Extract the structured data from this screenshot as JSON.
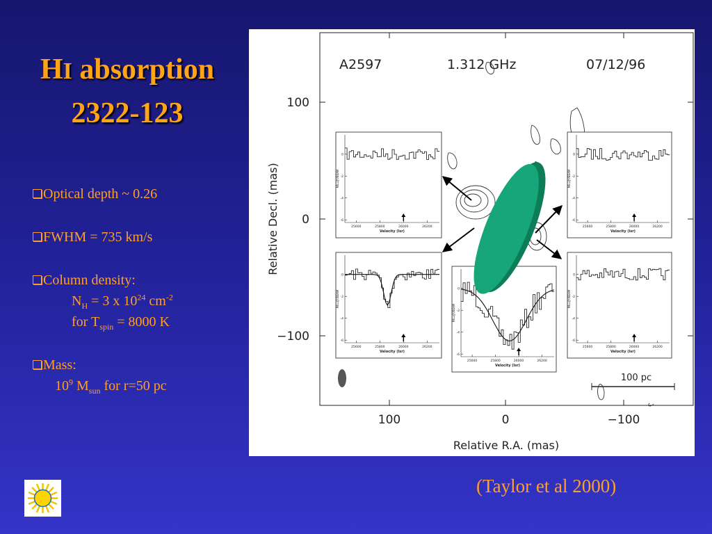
{
  "title": {
    "h": "H",
    "i": "I",
    "rest": " absorption",
    "line2": "2322-123"
  },
  "bullets": {
    "optical_depth": "Optical depth ~ 0.26",
    "fwhm": "FWHM = 735 km/s",
    "column_density": {
      "label": "Column density:",
      "n": "N",
      "n_sub": "H",
      "eq": " = 3 x 10",
      "exp": "24",
      "unit": " cm",
      "unit_exp": "-2",
      "for": "for T",
      "for_sub": "spin",
      "for_rest": " = 8000 K"
    },
    "mass": {
      "label": "Mass:",
      "base": "10",
      "exp": "9",
      "m": " M",
      "m_sub": "sun",
      "rest": " for r=50 pc"
    }
  },
  "figure": {
    "header": [
      "A2597",
      "1.312 GHz",
      "07/12/96"
    ],
    "yticks": [
      "100",
      "0",
      "−100"
    ],
    "xticks": [
      "100",
      "0",
      "−100"
    ],
    "ylabel": "Relative Decl. (mas)",
    "xlabel": "Relative R.A. (mas)",
    "scale": "100 pc",
    "inset": {
      "ylabel": "MILLIJY/BEAM",
      "xlabel": "Velocity (lsr)",
      "xticks": [
        "25600",
        "25800",
        "26000",
        "26200"
      ],
      "yticks": [
        "0",
        "-2",
        "-4",
        "-6"
      ]
    }
  },
  "citation": "(Taylor et al 2000)"
}
